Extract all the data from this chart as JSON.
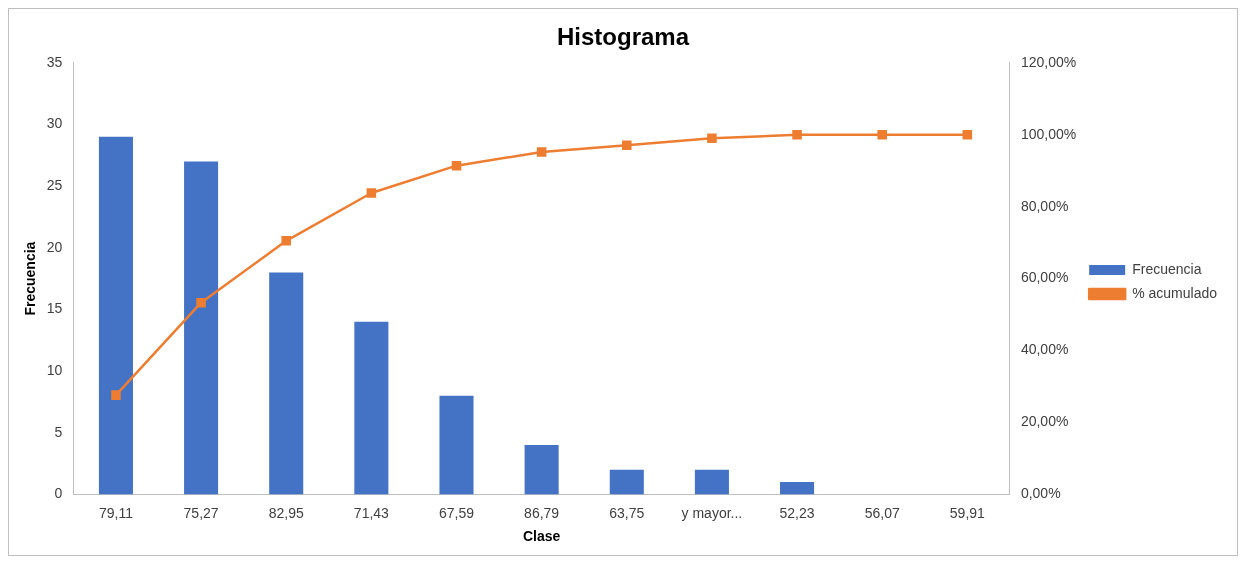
{
  "chart_data": {
    "type": "bar",
    "title": "Histograma",
    "xlabel": "Clase",
    "ylabel": "Frecuencia",
    "categories": [
      "79,11",
      "75,27",
      "82,95",
      "71,43",
      "67,59",
      "86,79",
      "63,75",
      "y mayor...",
      "52,23",
      "56,07",
      "59,91"
    ],
    "series": [
      {
        "name": "Frecuencia",
        "color": "#4472c4",
        "values": [
          29,
          27,
          18,
          14,
          8,
          4,
          2,
          2,
          1,
          0,
          0
        ]
      },
      {
        "name": "% acumulado",
        "type": "line",
        "axis": "y2",
        "color": "#ed7d31",
        "marker": "square",
        "values": [
          27.6,
          53.3,
          70.5,
          83.8,
          91.4,
          95.2,
          97.1,
          99.0,
          100,
          100,
          100
        ]
      }
    ],
    "ylim": [
      0,
      35
    ],
    "yticks": [
      0,
      5,
      10,
      15,
      20,
      25,
      30,
      35
    ],
    "y2lim": [
      0,
      120
    ],
    "y2ticks": [
      {
        "value": 0,
        "label": "0,00%"
      },
      {
        "value": 20,
        "label": "20,00%"
      },
      {
        "value": 40,
        "label": "40,00%"
      },
      {
        "value": 60,
        "label": "60,00%"
      },
      {
        "value": 80,
        "label": "80,00%"
      },
      {
        "value": 100,
        "label": "100,00%"
      },
      {
        "value": 120,
        "label": "120,00%"
      }
    ],
    "grid": false,
    "legend": "right"
  }
}
